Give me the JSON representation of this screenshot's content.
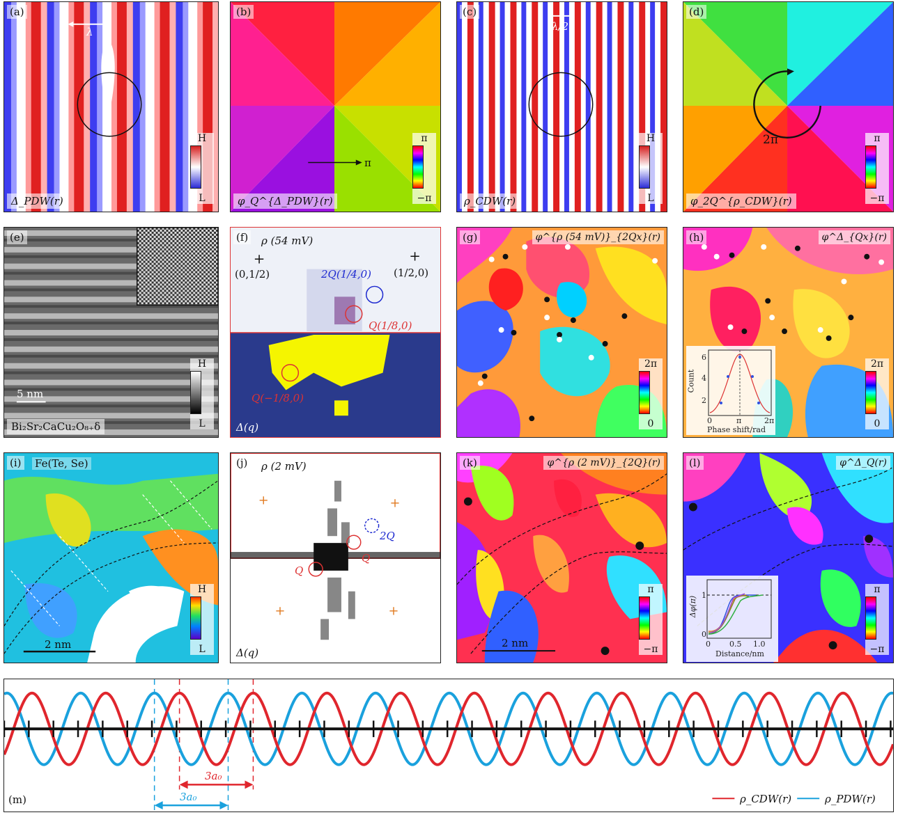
{
  "panels": {
    "a": {
      "tag": "(a)",
      "label": "Δ_PDW(r)",
      "lambda": "λ",
      "cbar_top": "H",
      "cbar_bot": "L"
    },
    "b": {
      "tag": "(b)",
      "label": "φ_Q^{Δ_PDW}(r)",
      "arrow": "π",
      "cbar_top": "π",
      "cbar_bot": "−π"
    },
    "c": {
      "tag": "(c)",
      "label": "ρ_CDW(r)",
      "lambda": "λ/2",
      "cbar_top": "H",
      "cbar_bot": "L"
    },
    "d": {
      "tag": "(d)",
      "label": "φ_2Q^{ρ_CDW}(r)",
      "winding": "2π",
      "cbar_top": "π",
      "cbar_bot": "−π"
    },
    "e": {
      "tag": "(e)",
      "scale": "5 nm",
      "material": "Bi₂Sr₂CaCu₂O₈₊δ",
      "cbar_top": "H",
      "cbar_bot": "L"
    },
    "f": {
      "tag": "(f)",
      "top_label": "ρ (54 mV)",
      "bottom_label": "Δ(q)",
      "p1": "(0,1/2)",
      "p2": "(1/2,0)",
      "q2": "2Q(1/4,0)",
      "q1": "Q(1/8,0)",
      "qneg": "Q(−1/8,0)"
    },
    "g": {
      "tag": "(g)",
      "label": "φ^{ρ (54 mV)}_{2Qx}(r)",
      "cbar_top": "2π",
      "cbar_bot": "0"
    },
    "h": {
      "tag": "(h)",
      "label": "φ^Δ_{Qx}(r)",
      "cbar_top": "2π",
      "cbar_bot": "0",
      "inset": {
        "ylabel": "Count",
        "xlabel": "Phase shift/rad",
        "yticks": [
          "6",
          "4",
          "2"
        ],
        "xticks": [
          "0",
          "π",
          "2π"
        ]
      }
    },
    "i": {
      "tag": "(i)",
      "material": "Fe(Te, Se)",
      "scale": "2 nm",
      "cbar_top": "H",
      "cbar_bot": "L"
    },
    "j": {
      "tag": "(j)",
      "top_label": "ρ (2 mV)",
      "bottom_label": "Δ(q)",
      "q2": "2Q",
      "q1": "Q",
      "qneg": "Q"
    },
    "k": {
      "tag": "(k)",
      "label": "φ^{ρ (2 mV)}_{2Q}(r)",
      "scale": "2 nm",
      "cbar_top": "π",
      "cbar_bot": "−π"
    },
    "l": {
      "tag": "(l)",
      "label": "φ^Δ_Q(r)",
      "cbar_top": "π",
      "cbar_bot": "−π",
      "inset": {
        "ylabel": "Δφ(π)",
        "xlabel": "Distance/nm",
        "yticks": [
          "1",
          "0"
        ],
        "xticks": [
          "0",
          "0.5",
          "1.0"
        ]
      }
    },
    "m": {
      "tag": "(m)",
      "red_period": "3a₀",
      "blue_period": "3a₀",
      "legend_cdw": "ρ_CDW(r)",
      "legend_pdw": "ρ_PDW(r)"
    }
  },
  "colors": {
    "cdw": "#e0262d",
    "pdw": "#1aa1dd",
    "axis": "#111111"
  }
}
